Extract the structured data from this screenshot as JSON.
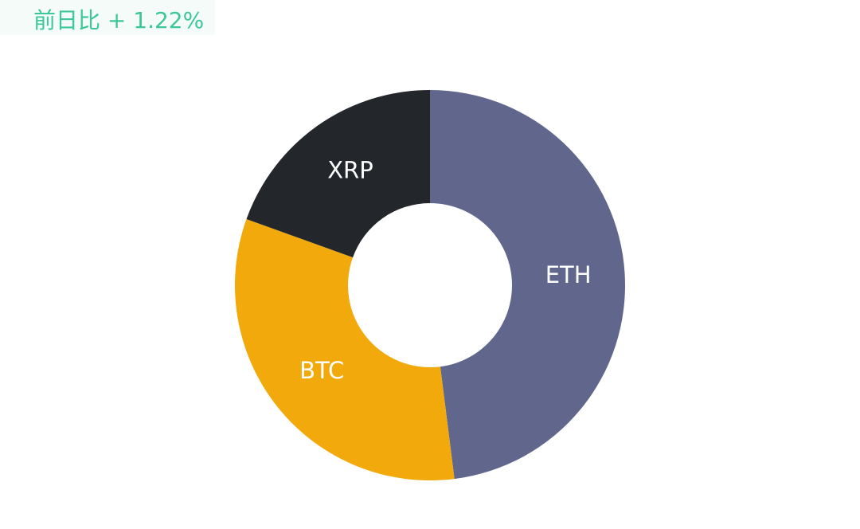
{
  "header": {
    "change": "前日比 + 1.22%"
  },
  "chart_data": {
    "type": "donut",
    "categories": [
      "ETH",
      "BTC",
      "XRP"
    ],
    "values": [
      48,
      32.5,
      19.5
    ],
    "colors": [
      "#60668c",
      "#f2a90c",
      "#23272c"
    ]
  }
}
